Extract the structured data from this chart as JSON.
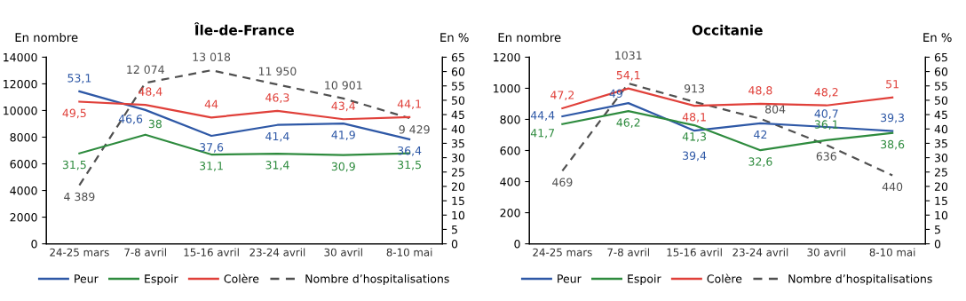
{
  "chart_data": [
    {
      "type": "line",
      "title": "Île-de-France",
      "ylabel": "En nombre",
      "y2label": "En %",
      "categories": [
        "24-25 mars",
        "7-8 avril",
        "15-16 avril",
        "23-24 avril",
        "30 avril",
        "8-10 mai"
      ],
      "ylim": [
        0,
        14000
      ],
      "yticks": [
        0,
        2000,
        4000,
        6000,
        8000,
        10000,
        12000,
        14000
      ],
      "y2lim": [
        0,
        65
      ],
      "y2ticks": [
        0,
        5,
        10,
        15,
        20,
        25,
        30,
        35,
        40,
        45,
        50,
        55,
        60,
        65
      ],
      "legend": "bottom",
      "grid": false,
      "marker": "none",
      "series": [
        {
          "name": "Peur",
          "color": "#2e58a6",
          "axis": "y2",
          "line_style": "solid",
          "values": [
            53.1,
            46.6,
            37.6,
            41.4,
            41.9,
            36.4
          ],
          "value_labels": [
            "53,1",
            "46,6",
            "37,6",
            "41,4",
            "41,9",
            "36,4"
          ]
        },
        {
          "name": "Espoir",
          "color": "#2e8b3e",
          "axis": "y2",
          "line_style": "solid",
          "values": [
            31.5,
            38,
            31.1,
            31.4,
            30.9,
            31.5
          ],
          "value_labels": [
            "31,5",
            "38",
            "31,1",
            "31,4",
            "30,9",
            "31,5"
          ]
        },
        {
          "name": "Colère",
          "color": "#e0403a",
          "axis": "y2",
          "line_style": "solid",
          "values": [
            49.5,
            48.4,
            44,
            46.3,
            43.4,
            44.1
          ],
          "value_labels": [
            "49,5",
            "48,4",
            "44",
            "46,3",
            "43,4",
            "44,1"
          ]
        },
        {
          "name": "Nombre d’hospitalisations",
          "color": "#505050",
          "axis": "y",
          "line_style": "dashed",
          "values": [
            4389,
            12074,
            13018,
            11950,
            10901,
            9429
          ],
          "value_labels": [
            "4 389",
            "12 074",
            "13 018",
            "11 950",
            "10 901",
            "9 429"
          ]
        }
      ]
    },
    {
      "type": "line",
      "title": "Occitanie",
      "ylabel": "En nombre",
      "y2label": "En %",
      "categories": [
        "24-25 mars",
        "7-8 avril",
        "15-16 avril",
        "23-24 avril",
        "30 avril",
        "8-10 mai"
      ],
      "ylim": [
        0,
        1200
      ],
      "yticks": [
        0,
        200,
        400,
        600,
        800,
        1000,
        1200
      ],
      "y2lim": [
        0,
        65
      ],
      "y2ticks": [
        0,
        5,
        10,
        15,
        20,
        25,
        30,
        35,
        40,
        45,
        50,
        55,
        60,
        65
      ],
      "legend": "bottom",
      "grid": false,
      "marker": "none",
      "series": [
        {
          "name": "Peur",
          "color": "#2e58a6",
          "axis": "y2",
          "line_style": "solid",
          "values": [
            44.4,
            49,
            39.4,
            42,
            40.7,
            39.3
          ],
          "value_labels": [
            "44,4",
            "49",
            "39,4",
            "42",
            "40,7",
            "39,3"
          ]
        },
        {
          "name": "Espoir",
          "color": "#2e8b3e",
          "axis": "y2",
          "line_style": "solid",
          "values": [
            41.7,
            46.2,
            41.3,
            32.6,
            36.1,
            38.6
          ],
          "value_labels": [
            "41,7",
            "46,2",
            "41,3",
            "32,6",
            "36,1",
            "38,6"
          ]
        },
        {
          "name": "Colère",
          "color": "#e0403a",
          "axis": "y2",
          "line_style": "solid",
          "values": [
            47.2,
            54.1,
            48.1,
            48.8,
            48.2,
            51
          ],
          "value_labels": [
            "47,2",
            "54,1",
            "48,1",
            "48,8",
            "48,2",
            "51"
          ]
        },
        {
          "name": "Nombre d’hospitalisations",
          "color": "#505050",
          "axis": "y",
          "line_style": "dashed",
          "values": [
            469,
            1031,
            913,
            804,
            636,
            440
          ],
          "value_labels": [
            "469",
            "1031",
            "913",
            "804",
            "636",
            "440"
          ]
        }
      ]
    }
  ]
}
